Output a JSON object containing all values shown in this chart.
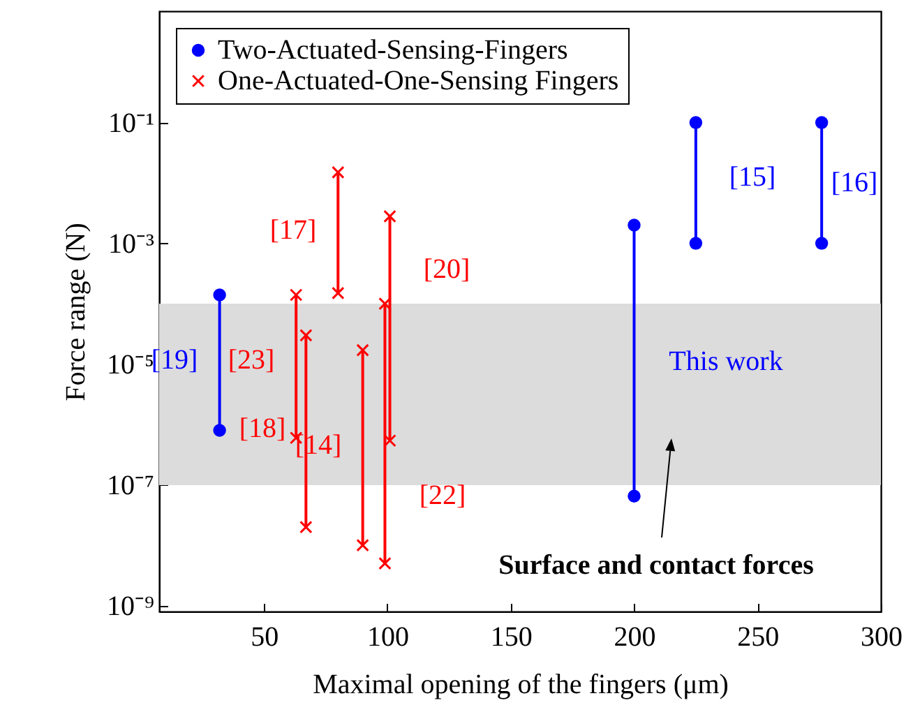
{
  "chart_data": {
    "type": "line",
    "xlabel": "Maximal opening of the fingers (μm)",
    "ylabel": "Force range (N)",
    "series": [
      {
        "name": "Two-Actuated-Sensing-Fingers",
        "color": "#0000ff",
        "marker": "circle",
        "x": [
          32,
          32,
          null,
          200,
          200,
          null,
          225,
          225,
          null,
          276,
          276
        ],
        "values": [
          0.00014,
          8e-07,
          null,
          0.002,
          6.5e-08,
          null,
          0.001,
          0.1,
          null,
          0.1,
          0.001
        ]
      },
      {
        "name": "One-Actuated-One-Sensing Fingers",
        "color": "#ff0000",
        "marker": "cross",
        "x": [
          63,
          63,
          null,
          67,
          67,
          null,
          80,
          80,
          null,
          90,
          90,
          null,
          99,
          99,
          null,
          101,
          101
        ],
        "values": [
          0.00014,
          6e-07,
          null,
          3e-05,
          2e-08,
          null,
          0.015,
          0.00015,
          null,
          1.7e-05,
          1e-08,
          null,
          0.0001,
          5e-09,
          null,
          0.0028,
          5.4e-07
        ]
      }
    ],
    "bands": [
      {
        "axis": "y",
        "from": 1e-07,
        "to": 0.0001,
        "color": "#dcdcdc"
      }
    ],
    "annotations": [
      "[19]",
      "[23]",
      "[18]",
      "[14]",
      "[17]",
      "[20]",
      "[22]",
      "[15]",
      "[16]",
      "This work",
      "Surface and contact forces"
    ],
    "log": "y",
    "xlim": [
      7.5,
      300
    ],
    "xticks": [
      50,
      100,
      150,
      200,
      250,
      300
    ],
    "ylim": [
      8e-10,
      7
    ],
    "yticks": [
      {
        "value": 1e-09,
        "label": "10⁻⁹"
      },
      {
        "value": 1e-07,
        "label": "10⁻⁷"
      },
      {
        "value": 1e-05,
        "label": "10⁻⁵"
      },
      {
        "value": 0.001,
        "label": "10⁻³"
      },
      {
        "value": 0.1,
        "label": "10⁻¹"
      }
    ],
    "legend": "top left",
    "grid": false
  }
}
